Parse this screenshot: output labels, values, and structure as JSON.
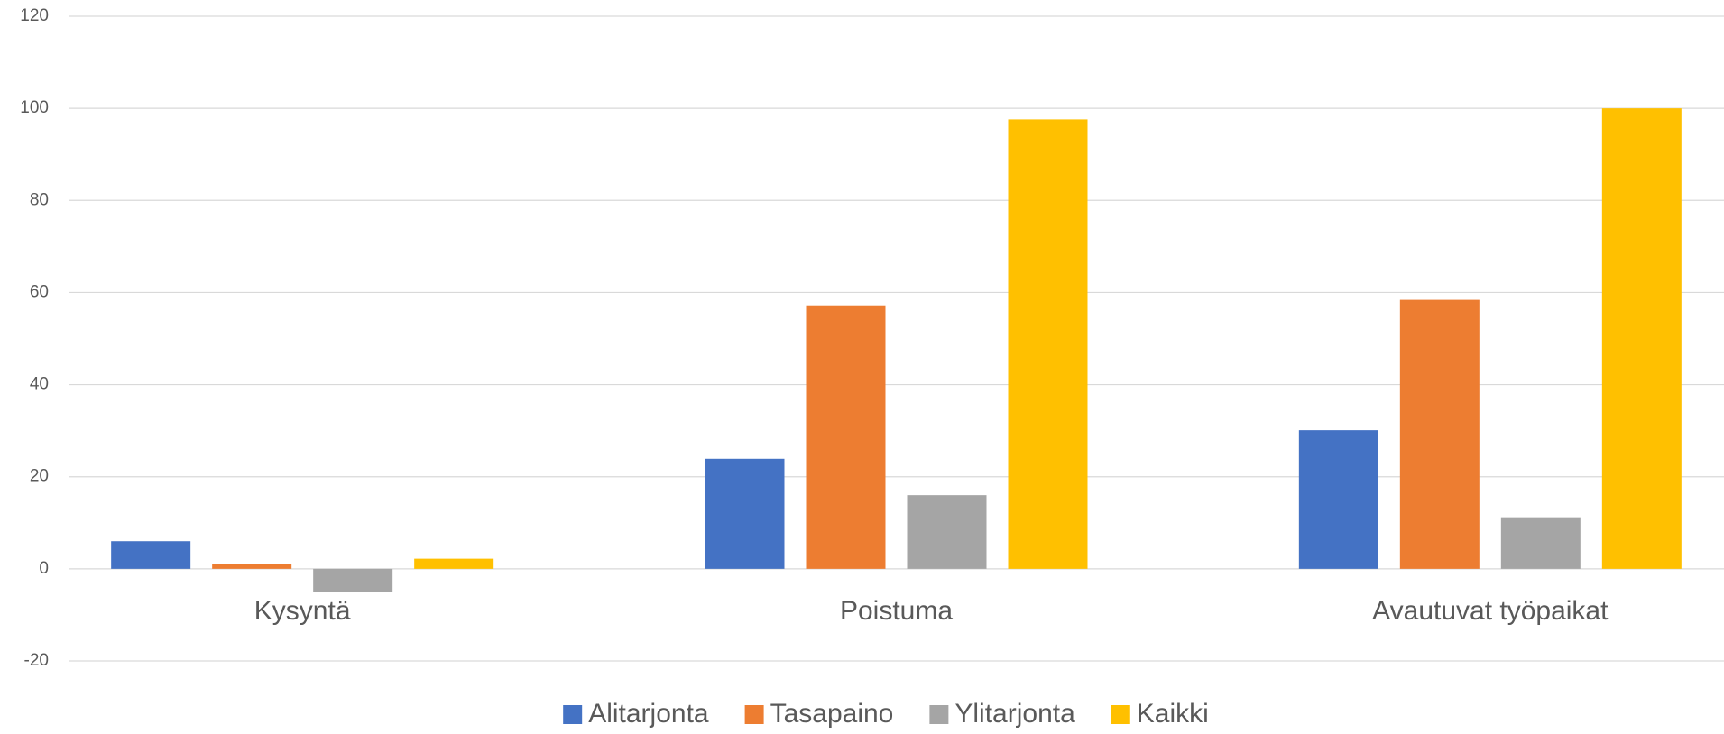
{
  "chart_data": {
    "type": "bar",
    "categories": [
      "Kysyntä",
      "Poistuma",
      "Avautuvat työpaikat"
    ],
    "series": [
      {
        "name": "Alitarjonta",
        "color": "#4472c4",
        "values": [
          6.0,
          23.9,
          30.1
        ]
      },
      {
        "name": "Tasapaino",
        "color": "#ed7d31",
        "values": [
          1.0,
          57.2,
          58.4
        ]
      },
      {
        "name": "Ylitarjonta",
        "color": "#a5a5a5",
        "values": [
          -5.0,
          16.0,
          11.2
        ]
      },
      {
        "name": "Kaikki",
        "color": "#ffc000",
        "values": [
          2.2,
          97.6,
          100
        ]
      }
    ],
    "ylim": [
      -20,
      120
    ],
    "yticks": [
      -20,
      0,
      20,
      40,
      60,
      80,
      100,
      120
    ],
    "grid": true,
    "legend": "bottom"
  }
}
